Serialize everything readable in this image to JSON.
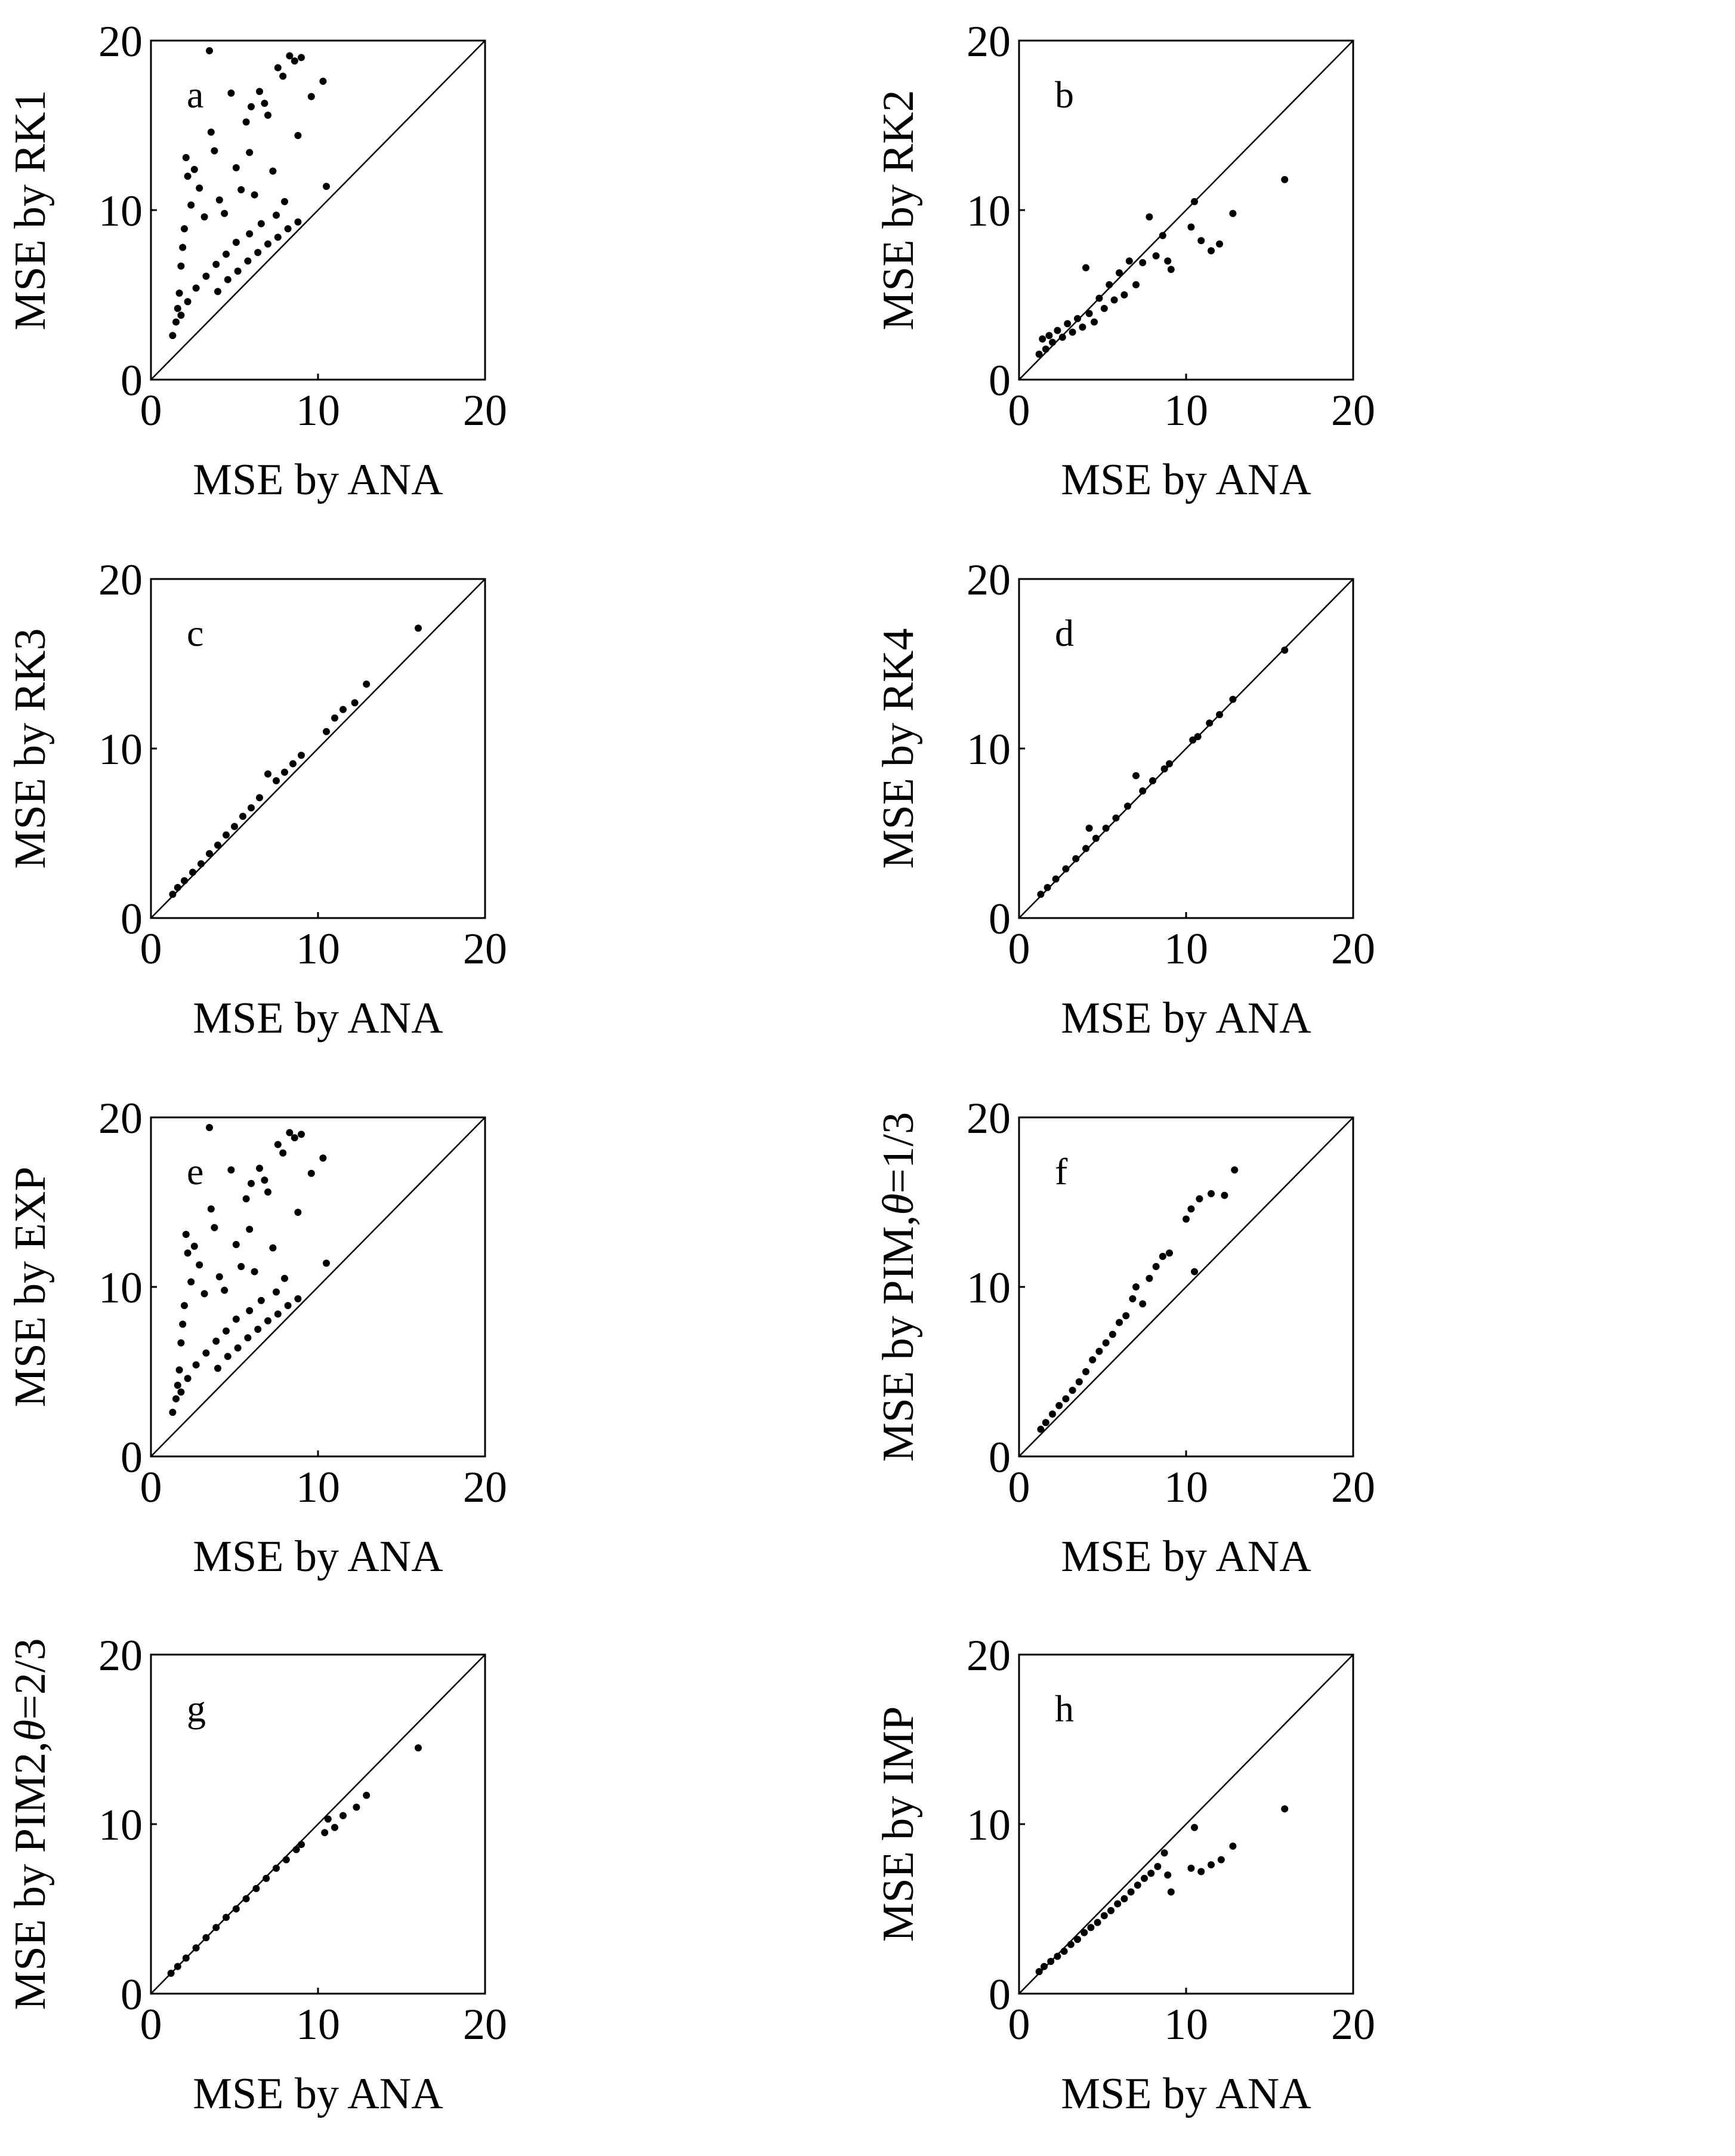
{
  "figure": {
    "description_free": true
  },
  "chart_data": [
    {
      "type": "scatter",
      "panel": "a",
      "title": "",
      "xlabel": "MSE by ANA",
      "ylabel": "MSE by RK1",
      "ylabel_parts": [
        {
          "text": "MSE by RK1",
          "italic": false
        }
      ],
      "xlim": [
        0,
        20
      ],
      "ylim": [
        0,
        20
      ],
      "xticks": [
        "0",
        "10",
        "20"
      ],
      "yticks": [
        "0",
        "10",
        "20"
      ],
      "reference_line": "y = x",
      "grid": false,
      "points": [
        [
          1.3,
          2.6
        ],
        [
          1.5,
          3.4
        ],
        [
          1.6,
          4.2
        ],
        [
          1.7,
          5.1
        ],
        [
          1.8,
          6.7
        ],
        [
          1.9,
          7.8
        ],
        [
          2.0,
          8.9
        ],
        [
          2.1,
          13.1
        ],
        [
          2.2,
          12.0
        ],
        [
          2.4,
          10.3
        ],
        [
          2.6,
          12.4
        ],
        [
          2.9,
          11.3
        ],
        [
          3.2,
          9.6
        ],
        [
          3.5,
          19.4
        ],
        [
          3.6,
          14.6
        ],
        [
          3.8,
          13.5
        ],
        [
          4.1,
          10.6
        ],
        [
          4.4,
          9.8
        ],
        [
          4.8,
          16.9
        ],
        [
          5.1,
          12.5
        ],
        [
          5.4,
          11.2
        ],
        [
          5.7,
          15.2
        ],
        [
          5.9,
          13.4
        ],
        [
          6.0,
          16.1
        ],
        [
          6.2,
          10.9
        ],
        [
          6.5,
          17.0
        ],
        [
          6.8,
          16.3
        ],
        [
          7.0,
          15.6
        ],
        [
          7.3,
          12.3
        ],
        [
          7.6,
          18.4
        ],
        [
          7.9,
          17.9
        ],
        [
          8.3,
          19.1
        ],
        [
          8.6,
          18.8
        ],
        [
          8.8,
          14.4
        ],
        [
          9.0,
          19.0
        ],
        [
          9.6,
          16.7
        ],
        [
          10.3,
          17.6
        ],
        [
          10.5,
          11.4
        ],
        [
          8.0,
          10.5
        ],
        [
          7.5,
          9.7
        ],
        [
          6.6,
          9.2
        ],
        [
          5.9,
          8.6
        ],
        [
          5.1,
          8.1
        ],
        [
          4.5,
          7.4
        ],
        [
          3.9,
          6.8
        ],
        [
          3.3,
          6.1
        ],
        [
          2.7,
          5.4
        ],
        [
          2.2,
          4.6
        ],
        [
          1.8,
          3.8
        ],
        [
          4.0,
          5.2
        ],
        [
          4.6,
          5.9
        ],
        [
          5.2,
          6.4
        ],
        [
          5.8,
          7.0
        ],
        [
          6.4,
          7.5
        ],
        [
          7.0,
          8.0
        ],
        [
          7.6,
          8.4
        ],
        [
          8.2,
          8.9
        ],
        [
          8.8,
          9.3
        ]
      ]
    },
    {
      "type": "scatter",
      "panel": "b",
      "title": "",
      "xlabel": "MSE by ANA",
      "ylabel": "MSE by RK2",
      "ylabel_parts": [
        {
          "text": "MSE by RK2",
          "italic": false
        }
      ],
      "xlim": [
        0,
        20
      ],
      "ylim": [
        0,
        20
      ],
      "xticks": [
        "0",
        "10",
        "20"
      ],
      "yticks": [
        "0",
        "10",
        "20"
      ],
      "reference_line": "y = x",
      "grid": false,
      "points": [
        [
          1.2,
          1.5
        ],
        [
          1.4,
          2.4
        ],
        [
          1.6,
          1.8
        ],
        [
          1.8,
          2.6
        ],
        [
          2.0,
          2.2
        ],
        [
          2.3,
          2.9
        ],
        [
          2.6,
          2.5
        ],
        [
          2.9,
          3.3
        ],
        [
          3.2,
          2.8
        ],
        [
          3.5,
          3.6
        ],
        [
          3.8,
          3.1
        ],
        [
          4.0,
          6.6
        ],
        [
          4.2,
          3.9
        ],
        [
          4.5,
          3.4
        ],
        [
          4.8,
          4.8
        ],
        [
          5.1,
          4.2
        ],
        [
          5.4,
          5.6
        ],
        [
          5.7,
          4.7
        ],
        [
          6.0,
          6.3
        ],
        [
          6.3,
          5.0
        ],
        [
          6.6,
          7.0
        ],
        [
          7.0,
          5.6
        ],
        [
          7.4,
          6.9
        ],
        [
          7.8,
          9.6
        ],
        [
          8.2,
          7.3
        ],
        [
          8.6,
          8.5
        ],
        [
          8.9,
          7.0
        ],
        [
          9.1,
          6.5
        ],
        [
          10.3,
          9.0
        ],
        [
          10.5,
          10.5
        ],
        [
          10.9,
          8.2
        ],
        [
          11.5,
          7.6
        ],
        [
          12.0,
          8.0
        ],
        [
          12.8,
          9.8
        ],
        [
          15.9,
          11.8
        ]
      ]
    },
    {
      "type": "scatter",
      "panel": "c",
      "title": "",
      "xlabel": "MSE by ANA",
      "ylabel": "MSE by RK3",
      "ylabel_parts": [
        {
          "text": "MSE by RK3",
          "italic": false
        }
      ],
      "xlim": [
        0,
        20
      ],
      "ylim": [
        0,
        20
      ],
      "xticks": [
        "0",
        "10",
        "20"
      ],
      "yticks": [
        "0",
        "10",
        "20"
      ],
      "reference_line": "y = x",
      "grid": false,
      "points": [
        [
          1.3,
          1.4
        ],
        [
          1.6,
          1.8
        ],
        [
          2.0,
          2.2
        ],
        [
          2.5,
          2.7
        ],
        [
          3.0,
          3.2
        ],
        [
          3.5,
          3.8
        ],
        [
          4.0,
          4.3
        ],
        [
          4.5,
          4.9
        ],
        [
          5.0,
          5.4
        ],
        [
          5.5,
          6.0
        ],
        [
          6.0,
          6.5
        ],
        [
          6.5,
          7.1
        ],
        [
          7.0,
          8.5
        ],
        [
          7.5,
          8.1
        ],
        [
          8.0,
          8.6
        ],
        [
          8.5,
          9.1
        ],
        [
          9.0,
          9.6
        ],
        [
          10.5,
          11.0
        ],
        [
          11.0,
          11.8
        ],
        [
          11.5,
          12.3
        ],
        [
          12.2,
          12.7
        ],
        [
          12.9,
          13.8
        ],
        [
          16.0,
          17.1
        ]
      ]
    },
    {
      "type": "scatter",
      "panel": "d",
      "title": "",
      "xlabel": "MSE by ANA",
      "ylabel": "MSE by RK4",
      "ylabel_parts": [
        {
          "text": "MSE by RK4",
          "italic": false
        }
      ],
      "xlim": [
        0,
        20
      ],
      "ylim": [
        0,
        20
      ],
      "xticks": [
        "0",
        "10",
        "20"
      ],
      "yticks": [
        "0",
        "10",
        "20"
      ],
      "reference_line": "y = x",
      "grid": false,
      "points": [
        [
          1.3,
          1.4
        ],
        [
          1.7,
          1.8
        ],
        [
          2.2,
          2.3
        ],
        [
          2.8,
          2.9
        ],
        [
          3.4,
          3.5
        ],
        [
          4.0,
          4.1
        ],
        [
          4.2,
          5.3
        ],
        [
          4.6,
          4.7
        ],
        [
          5.2,
          5.3
        ],
        [
          5.8,
          5.9
        ],
        [
          6.5,
          6.6
        ],
        [
          7.0,
          8.4
        ],
        [
          7.4,
          7.5
        ],
        [
          8.0,
          8.1
        ],
        [
          8.7,
          8.8
        ],
        [
          9.0,
          9.1
        ],
        [
          10.4,
          10.5
        ],
        [
          10.7,
          10.7
        ],
        [
          11.4,
          11.5
        ],
        [
          12.0,
          12.0
        ],
        [
          12.8,
          12.9
        ],
        [
          15.9,
          15.8
        ]
      ]
    },
    {
      "type": "scatter",
      "panel": "e",
      "title": "",
      "xlabel": "MSE by ANA",
      "ylabel": "MSE by EXP",
      "ylabel_parts": [
        {
          "text": "MSE by EXP",
          "italic": false
        }
      ],
      "xlim": [
        0,
        20
      ],
      "ylim": [
        0,
        20
      ],
      "xticks": [
        "0",
        "10",
        "20"
      ],
      "yticks": [
        "0",
        "10",
        "20"
      ],
      "reference_line": "y = x",
      "grid": false,
      "points": [
        [
          1.3,
          2.6
        ],
        [
          1.5,
          3.4
        ],
        [
          1.6,
          4.2
        ],
        [
          1.7,
          5.1
        ],
        [
          1.8,
          6.7
        ],
        [
          1.9,
          7.8
        ],
        [
          2.0,
          8.9
        ],
        [
          2.1,
          13.1
        ],
        [
          2.2,
          12.0
        ],
        [
          2.4,
          10.3
        ],
        [
          2.6,
          12.4
        ],
        [
          2.9,
          11.3
        ],
        [
          3.2,
          9.6
        ],
        [
          3.5,
          19.4
        ],
        [
          3.6,
          14.6
        ],
        [
          3.8,
          13.5
        ],
        [
          4.1,
          10.6
        ],
        [
          4.4,
          9.8
        ],
        [
          4.8,
          16.9
        ],
        [
          5.1,
          12.5
        ],
        [
          5.4,
          11.2
        ],
        [
          5.7,
          15.2
        ],
        [
          5.9,
          13.4
        ],
        [
          6.0,
          16.1
        ],
        [
          6.2,
          10.9
        ],
        [
          6.5,
          17.0
        ],
        [
          6.8,
          16.3
        ],
        [
          7.0,
          15.6
        ],
        [
          7.3,
          12.3
        ],
        [
          7.6,
          18.4
        ],
        [
          7.9,
          17.9
        ],
        [
          8.3,
          19.1
        ],
        [
          8.6,
          18.8
        ],
        [
          8.8,
          14.4
        ],
        [
          9.0,
          19.0
        ],
        [
          9.6,
          16.7
        ],
        [
          10.3,
          17.6
        ],
        [
          10.5,
          11.4
        ],
        [
          8.0,
          10.5
        ],
        [
          7.5,
          9.7
        ],
        [
          6.6,
          9.2
        ],
        [
          5.9,
          8.6
        ],
        [
          5.1,
          8.1
        ],
        [
          4.5,
          7.4
        ],
        [
          3.9,
          6.8
        ],
        [
          3.3,
          6.1
        ],
        [
          2.7,
          5.4
        ],
        [
          2.2,
          4.6
        ],
        [
          1.8,
          3.8
        ],
        [
          4.0,
          5.2
        ],
        [
          4.6,
          5.9
        ],
        [
          5.2,
          6.4
        ],
        [
          5.8,
          7.0
        ],
        [
          6.4,
          7.5
        ],
        [
          7.0,
          8.0
        ],
        [
          7.6,
          8.4
        ],
        [
          8.2,
          8.9
        ],
        [
          8.8,
          9.3
        ]
      ]
    },
    {
      "type": "scatter",
      "panel": "f",
      "title": "",
      "xlabel": "MSE by ANA",
      "ylabel": "MSE by PIM, θ=1/3",
      "ylabel_parts": [
        {
          "text": "MSE by PIM,",
          "italic": false
        },
        {
          "text": "θ",
          "italic": true
        },
        {
          "text": "=1/3",
          "italic": false
        }
      ],
      "xlim": [
        0,
        20
      ],
      "ylim": [
        0,
        20
      ],
      "xticks": [
        "0",
        "10",
        "20"
      ],
      "yticks": [
        "0",
        "10",
        "20"
      ],
      "reference_line": "y = x",
      "grid": false,
      "points": [
        [
          1.3,
          1.6
        ],
        [
          1.6,
          2.0
        ],
        [
          2.0,
          2.5
        ],
        [
          2.4,
          3.0
        ],
        [
          2.8,
          3.4
        ],
        [
          3.2,
          3.9
        ],
        [
          3.6,
          4.4
        ],
        [
          4.0,
          5.0
        ],
        [
          4.4,
          5.7
        ],
        [
          4.8,
          6.2
        ],
        [
          5.2,
          6.7
        ],
        [
          5.6,
          7.2
        ],
        [
          6.0,
          7.9
        ],
        [
          6.4,
          8.3
        ],
        [
          6.8,
          9.3
        ],
        [
          7.0,
          10.0
        ],
        [
          7.4,
          9.0
        ],
        [
          7.8,
          10.5
        ],
        [
          8.2,
          11.2
        ],
        [
          8.6,
          11.8
        ],
        [
          9.0,
          12.0
        ],
        [
          10.0,
          14.0
        ],
        [
          10.3,
          14.6
        ],
        [
          10.5,
          10.9
        ],
        [
          10.8,
          15.2
        ],
        [
          11.5,
          15.5
        ],
        [
          12.3,
          15.4
        ],
        [
          12.9,
          16.9
        ]
      ]
    },
    {
      "type": "scatter",
      "panel": "g",
      "title": "",
      "xlabel": "MSE by ANA",
      "ylabel": "MSE by PIM2, θ=2/3",
      "ylabel_parts": [
        {
          "text": "MSE by PIM2,",
          "italic": false
        },
        {
          "text": "θ",
          "italic": true
        },
        {
          "text": "=2/3",
          "italic": false
        }
      ],
      "xlim": [
        0,
        20
      ],
      "ylim": [
        0,
        20
      ],
      "xticks": [
        "0",
        "10",
        "20"
      ],
      "yticks": [
        "0",
        "10",
        "20"
      ],
      "reference_line": "y = x",
      "grid": false,
      "points": [
        [
          1.2,
          1.2
        ],
        [
          1.6,
          1.6
        ],
        [
          2.1,
          2.1
        ],
        [
          2.7,
          2.7
        ],
        [
          3.3,
          3.3
        ],
        [
          3.9,
          3.9
        ],
        [
          4.5,
          4.5
        ],
        [
          5.1,
          5.0
        ],
        [
          5.7,
          5.6
        ],
        [
          6.3,
          6.2
        ],
        [
          6.9,
          6.8
        ],
        [
          7.5,
          7.4
        ],
        [
          8.1,
          7.9
        ],
        [
          8.7,
          8.5
        ],
        [
          9.0,
          8.8
        ],
        [
          10.4,
          9.5
        ],
        [
          10.6,
          10.3
        ],
        [
          11.0,
          9.8
        ],
        [
          11.5,
          10.5
        ],
        [
          12.3,
          11.0
        ],
        [
          12.9,
          11.7
        ],
        [
          16.0,
          14.5
        ]
      ]
    },
    {
      "type": "scatter",
      "panel": "h",
      "title": "",
      "xlabel": "MSE by ANA",
      "ylabel": "MSE by IMP",
      "ylabel_parts": [
        {
          "text": "MSE by IMP",
          "italic": false
        }
      ],
      "xlim": [
        0,
        20
      ],
      "ylim": [
        0,
        20
      ],
      "xticks": [
        "0",
        "10",
        "20"
      ],
      "yticks": [
        "0",
        "10",
        "20"
      ],
      "reference_line": "y = x",
      "grid": false,
      "points": [
        [
          1.2,
          1.3
        ],
        [
          1.5,
          1.6
        ],
        [
          1.9,
          1.9
        ],
        [
          2.3,
          2.2
        ],
        [
          2.7,
          2.5
        ],
        [
          3.1,
          2.9
        ],
        [
          3.5,
          3.2
        ],
        [
          3.9,
          3.6
        ],
        [
          4.3,
          3.9
        ],
        [
          4.7,
          4.2
        ],
        [
          5.1,
          4.6
        ],
        [
          5.5,
          4.9
        ],
        [
          5.9,
          5.3
        ],
        [
          6.3,
          5.6
        ],
        [
          6.7,
          6.0
        ],
        [
          7.1,
          6.4
        ],
        [
          7.5,
          6.8
        ],
        [
          7.9,
          7.1
        ],
        [
          8.3,
          7.5
        ],
        [
          8.7,
          8.3
        ],
        [
          8.9,
          7.0
        ],
        [
          9.1,
          6.0
        ],
        [
          10.3,
          7.4
        ],
        [
          10.5,
          9.8
        ],
        [
          10.9,
          7.2
        ],
        [
          11.5,
          7.6
        ],
        [
          12.1,
          7.9
        ],
        [
          12.8,
          8.7
        ],
        [
          15.9,
          10.9
        ]
      ]
    }
  ],
  "panel_letters": [
    "a",
    "b",
    "c",
    "d",
    "e",
    "f",
    "g",
    "h"
  ]
}
